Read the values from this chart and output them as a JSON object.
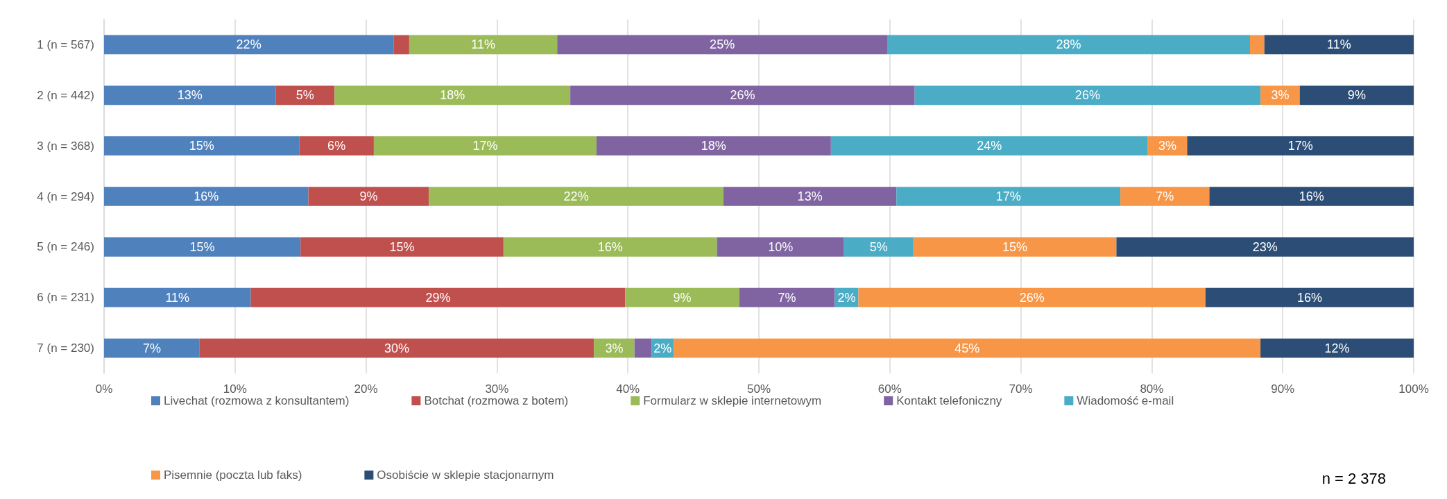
{
  "chart_data": {
    "type": "bar",
    "orientation": "horizontal",
    "stacked": true,
    "categories": [
      "1 (n = 567)",
      "2 (n = 442)",
      "3 (n = 368)",
      "4 (n = 294)",
      "5 (n = 246)",
      "6 (n = 231)",
      "7 (n = 230)"
    ],
    "series": [
      {
        "name": "Livechat (rozmowa z konsultantem)",
        "color": "#4f81bd",
        "values": [
          22.1,
          13.1,
          14.9,
          15.6,
          15.0,
          11.2,
          7.3
        ],
        "value_labels": [
          "22%",
          "13%",
          "15%",
          "16%",
          "15%",
          "11%",
          "7%"
        ]
      },
      {
        "name": "Botchat (rozmowa z botem)",
        "color": "#c0504d",
        "values": [
          1.2,
          4.5,
          5.7,
          9.2,
          15.5,
          28.6,
          30.1
        ],
        "value_labels": [
          null,
          "5%",
          "6%",
          "9%",
          "15%",
          "29%",
          "30%"
        ]
      },
      {
        "name": "Formularz w sklepie internetowym",
        "color": "#9bbb59",
        "values": [
          11.3,
          18.0,
          17.0,
          22.5,
          16.3,
          8.7,
          3.1
        ],
        "value_labels": [
          "11%",
          "18%",
          "17%",
          "22%",
          "16%",
          "9%",
          "3%"
        ]
      },
      {
        "name": "Kontakt telefoniczny",
        "color": "#8064a2",
        "values": [
          25.2,
          26.3,
          17.9,
          13.2,
          9.7,
          7.3,
          1.3
        ],
        "value_labels": [
          "25%",
          "26%",
          "18%",
          "13%",
          "10%",
          "7%",
          null
        ]
      },
      {
        "name": "Wiadomość e-mail",
        "color": "#4bacc6",
        "values": [
          27.7,
          26.4,
          24.2,
          17.1,
          5.3,
          1.8,
          1.7
        ],
        "value_labels": [
          "28%",
          "26%",
          "24%",
          "17%",
          "5%",
          "2%",
          "2%"
        ]
      },
      {
        "name": "Pisemnie (poczta lub faks)",
        "color": "#f79646",
        "values": [
          1.1,
          3.0,
          3.0,
          6.8,
          15.5,
          26.5,
          44.8
        ],
        "value_labels": [
          null,
          "3%",
          "3%",
          "7%",
          "15%",
          "26%",
          "45%"
        ]
      },
      {
        "name": "Osobiście w sklepie stacjonarnym",
        "color": "#2c4d75",
        "values": [
          11.4,
          8.7,
          17.3,
          15.6,
          22.7,
          15.9,
          11.7
        ],
        "value_labels": [
          "11%",
          "9%",
          "17%",
          "16%",
          "23%",
          "16%",
          "12%"
        ]
      }
    ],
    "xlim": [
      0,
      100
    ],
    "xticks": [
      {
        "value": 0,
        "label": "0%"
      },
      {
        "value": 10,
        "label": "10%"
      },
      {
        "value": 20,
        "label": "20%"
      },
      {
        "value": 30,
        "label": "30%"
      },
      {
        "value": 40,
        "label": "40%"
      },
      {
        "value": 50,
        "label": "50%"
      },
      {
        "value": 60,
        "label": "60%"
      },
      {
        "value": 70,
        "label": "70%"
      },
      {
        "value": 80,
        "label": "80%"
      },
      {
        "value": 90,
        "label": "90%"
      },
      {
        "value": 100,
        "label": "100%"
      }
    ],
    "grid": "x",
    "legend": "bottom",
    "annotations": [
      "n = 2 378"
    ]
  }
}
